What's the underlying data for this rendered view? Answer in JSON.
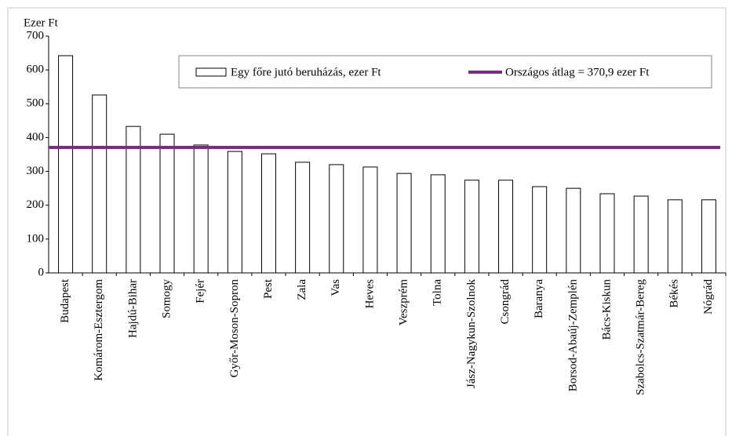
{
  "chart_data": {
    "type": "bar",
    "y_label": "Ezer Ft",
    "categories": [
      "Budapest",
      "Komárom-Esztergom",
      "Hajdú-Bihar",
      "Somogy",
      "Fejér",
      "Győr-Moson-Sopron",
      "Pest",
      "Zala",
      "Vas",
      "Heves",
      "Veszprém",
      "Tolna",
      "Jász-Nagykun-Szolnok",
      "Csongrád",
      "Baranya",
      "Borsod-Abaúj-Zemplén",
      "Bács-Kiskun",
      "Szabolcs-Szatmár-Bereg",
      "Békés",
      "Nógrád"
    ],
    "series": [
      {
        "name": "Egy főre jutó beruházás, ezer Ft",
        "color": "#ffffff",
        "values": [
          642,
          526,
          433,
          410,
          378,
          359,
          352,
          327,
          320,
          313,
          294,
          290,
          274,
          274,
          255,
          250,
          234,
          227,
          216,
          216
        ]
      }
    ],
    "reference_line": {
      "name": "Országos átlag = 370,9 ezer Ft",
      "color": "#7b2c83",
      "value": 370.9
    },
    "ylim": [
      0,
      700
    ],
    "yticks": [
      0,
      100,
      200,
      300,
      400,
      500,
      600,
      700
    ],
    "legend": "top"
  }
}
